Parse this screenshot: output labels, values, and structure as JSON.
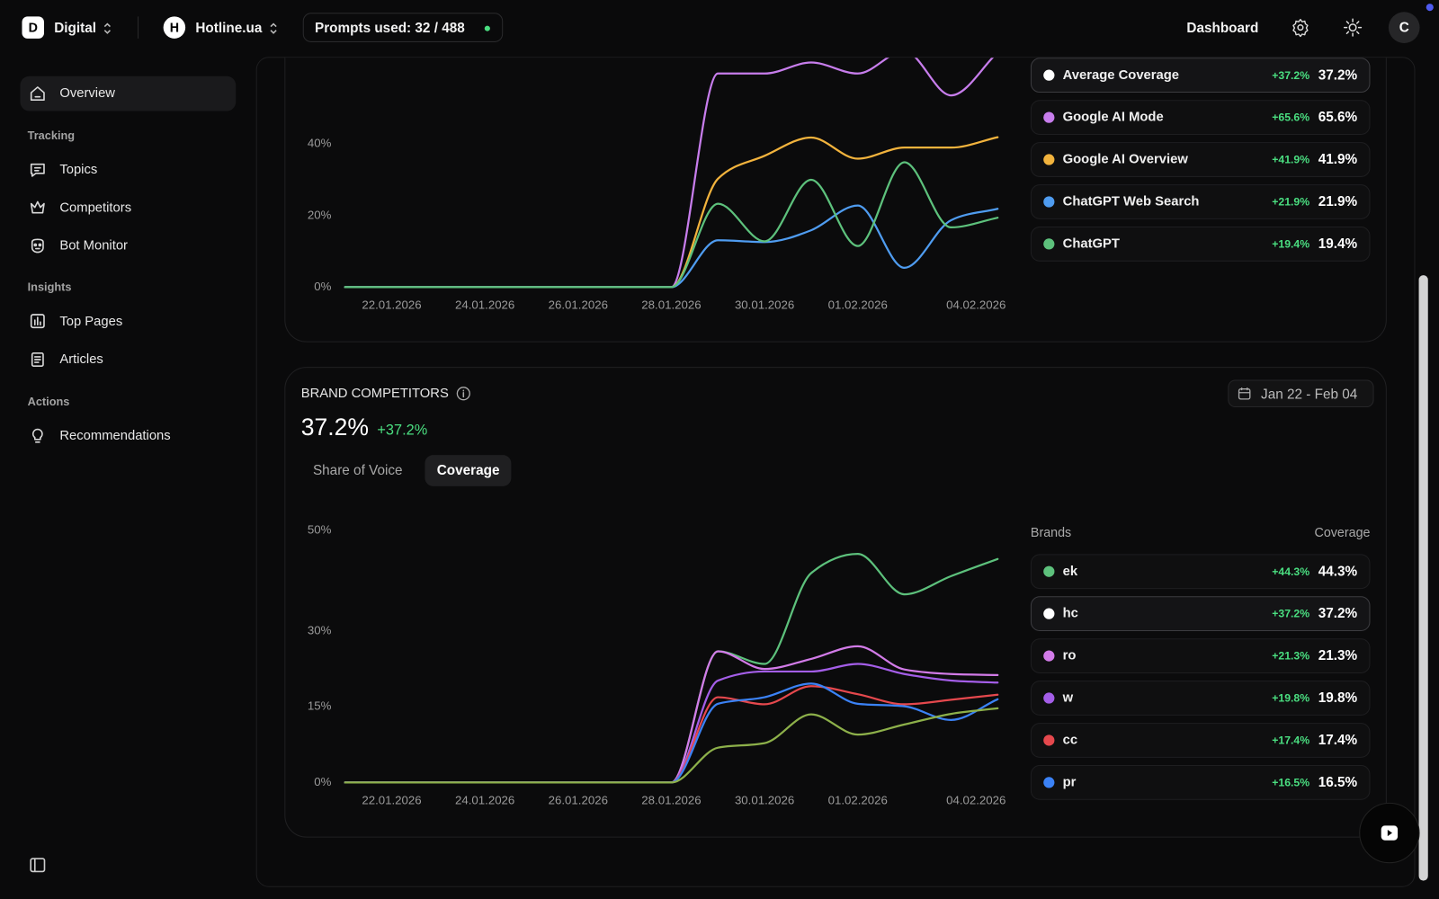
{
  "topbar": {
    "workspace_initial": "D",
    "workspace": "Digital",
    "project_initial": "H",
    "project": "Hotline.ua",
    "prompts": "Prompts used: 32 / 488",
    "nav": "Dashboard",
    "user_initial": "C"
  },
  "sidebar": {
    "main": "Overview",
    "sections": [
      {
        "title": "Tracking",
        "items": [
          "Topics",
          "Competitors",
          "Bot Monitor"
        ]
      },
      {
        "title": "Insights",
        "items": [
          "Top Pages",
          "Articles"
        ]
      },
      {
        "title": "Actions",
        "items": [
          "Recommendations"
        ]
      }
    ]
  },
  "chart_data": [
    {
      "type": "line",
      "categories": [
        null,
        "22.01.2026",
        null,
        "24.01.2026",
        null,
        "26.01.2026",
        null,
        "28.01.2026",
        null,
        "30.01.2026",
        null,
        "01.02.2026",
        null,
        null,
        "04.02.2026"
      ],
      "ylim": [
        0,
        65
      ],
      "yticks": [
        {
          "value": 0,
          "label": "0%"
        },
        {
          "value": 20,
          "label": "20%"
        },
        {
          "value": 40,
          "label": "40%"
        }
      ],
      "series": [
        {
          "name": "Average Coverage",
          "color": "#ffffff",
          "selected": true,
          "change": "+37.2%",
          "current": "37.2%",
          "values": [
            null,
            null,
            null,
            null,
            null,
            null,
            null,
            null,
            null,
            null,
            null,
            null,
            null,
            null,
            null
          ]
        },
        {
          "name": "Google AI Mode",
          "color": "#c77dec",
          "change": "+65.6%",
          "current": "65.6%",
          "values": [
            0,
            0,
            0,
            0,
            0,
            0,
            0,
            0,
            59.7,
            59.7,
            62.8,
            59.7,
            66,
            53.6,
            65.6
          ]
        },
        {
          "name": "Google AI Overview",
          "color": "#f2b33d",
          "change": "+41.9%",
          "current": "41.9%",
          "values": [
            0,
            0,
            0,
            0,
            0,
            0,
            0,
            0,
            30.3,
            36.7,
            41.8,
            35.9,
            39,
            39,
            41.9
          ]
        },
        {
          "name": "ChatGPT Web Search",
          "color": "#4f9cf0",
          "change": "+21.9%",
          "current": "21.9%",
          "values": [
            0,
            0,
            0,
            0,
            0,
            0,
            0,
            0,
            13.1,
            12.6,
            15.9,
            22.8,
            5.4,
            18.7,
            21.9
          ]
        },
        {
          "name": "ChatGPT",
          "color": "#5dc17c",
          "change": "+19.4%",
          "current": "19.4%",
          "values": [
            0,
            0,
            0,
            0,
            0,
            0,
            0,
            0,
            23.3,
            12.8,
            30,
            11.5,
            34.9,
            16.7,
            19.4
          ]
        }
      ]
    },
    {
      "type": "line",
      "title": "BRAND COMPETITORS",
      "headline": "37.2%",
      "headline_change": "+37.2%",
      "tabs": [
        "Share of Voice",
        "Coverage"
      ],
      "active_tab": 1,
      "date_range": "Jan 22 - Feb 04",
      "legend_headers": [
        "Brands",
        "Coverage"
      ],
      "categories": [
        null,
        "22.01.2026",
        null,
        "24.01.2026",
        null,
        "26.01.2026",
        null,
        "28.01.2026",
        null,
        "30.01.2026",
        null,
        "01.02.2026",
        null,
        null,
        "04.02.2026"
      ],
      "ylim": [
        0,
        50
      ],
      "yticks": [
        {
          "value": 0,
          "label": "0%"
        },
        {
          "value": 15,
          "label": "15%"
        },
        {
          "value": 30,
          "label": "30%"
        },
        {
          "value": 50,
          "label": "50%"
        }
      ],
      "series": [
        {
          "name": "ek",
          "color": "#5dc17c",
          "change": "+44.3%",
          "current": "44.3%",
          "values": [
            0,
            0,
            0,
            0,
            0,
            0,
            0,
            0,
            26,
            23.5,
            41.5,
            45.3,
            37.3,
            40.9,
            44.3
          ]
        },
        {
          "name": "hc",
          "color": "#ffffff",
          "selected": true,
          "change": "+37.2%",
          "current": "37.2%",
          "values": [
            null,
            null,
            null,
            null,
            null,
            null,
            null,
            null,
            null,
            null,
            null,
            null,
            null,
            null,
            null
          ]
        },
        {
          "name": "ro",
          "color": "#d27be8",
          "change": "+21.3%",
          "current": "21.3%",
          "values": [
            0,
            0,
            0,
            0,
            0,
            0,
            0,
            0,
            26,
            22.5,
            24.5,
            27,
            22.4,
            21.5,
            21.3
          ]
        },
        {
          "name": "w",
          "color": "#a45ee8",
          "change": "+19.8%",
          "current": "19.8%",
          "values": [
            0,
            0,
            0,
            0,
            0,
            0,
            0,
            0,
            20.2,
            22,
            22,
            23.5,
            21.5,
            20.2,
            19.8
          ]
        },
        {
          "name": "cc",
          "color": "#e5484d",
          "change": "+17.4%",
          "current": "17.4%",
          "values": [
            0,
            0,
            0,
            0,
            0,
            0,
            0,
            0,
            16.9,
            15.5,
            19.1,
            17.5,
            15.5,
            16.4,
            17.4
          ]
        },
        {
          "name": "pr",
          "color": "#3b82f6",
          "change": "+16.5%",
          "current": "16.5%",
          "values": [
            0,
            0,
            0,
            0,
            0,
            0,
            0,
            0,
            15.6,
            16.9,
            19.6,
            15.6,
            15.1,
            12.4,
            16.5
          ]
        },
        {
          "color": "#8db04a",
          "values": [
            0,
            0,
            0,
            0,
            0,
            0,
            0,
            0,
            6.9,
            7.8,
            13.5,
            9.5,
            11.5,
            13.6,
            14.7
          ]
        }
      ]
    }
  ]
}
